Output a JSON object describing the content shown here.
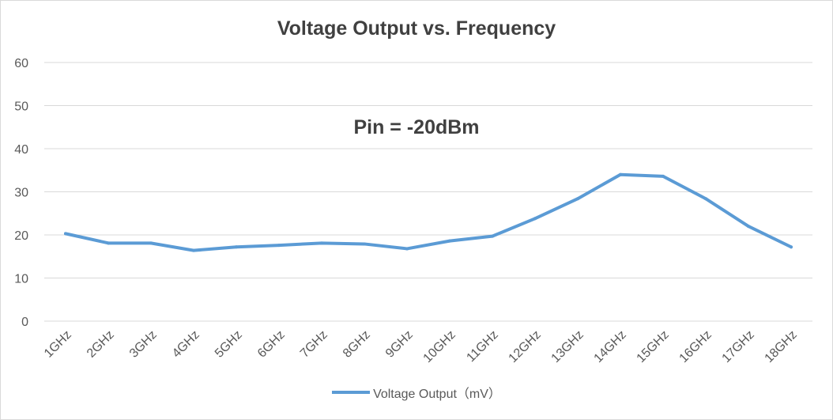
{
  "chart_data": {
    "type": "line",
    "title": "Voltage Output vs. Frequency",
    "annotation": "Pin = -20dBm",
    "xlabel": "",
    "ylabel": "",
    "ylim": [
      0,
      60
    ],
    "y_ticks": [
      0,
      10,
      20,
      30,
      40,
      50,
      60
    ],
    "grid": true,
    "legend_position": "bottom",
    "categories": [
      "1GHz",
      "2GHz",
      "3GHz",
      "4GHz",
      "5GHz",
      "6GHz",
      "7GHz",
      "8GHz",
      "9GHz",
      "10GHz",
      "11GHz",
      "12GHz",
      "13GHz",
      "14GHz",
      "15GHz",
      "16GHz",
      "17GHz",
      "18GHz"
    ],
    "series": [
      {
        "name": "Voltage Output（mV）",
        "color": "#5b9bd5",
        "values": [
          20.3,
          18.1,
          18.1,
          16.4,
          17.2,
          17.6,
          18.1,
          17.9,
          16.8,
          18.6,
          19.7,
          23.8,
          28.4,
          34.0,
          33.6,
          28.4,
          22.0,
          17.2
        ]
      }
    ]
  }
}
